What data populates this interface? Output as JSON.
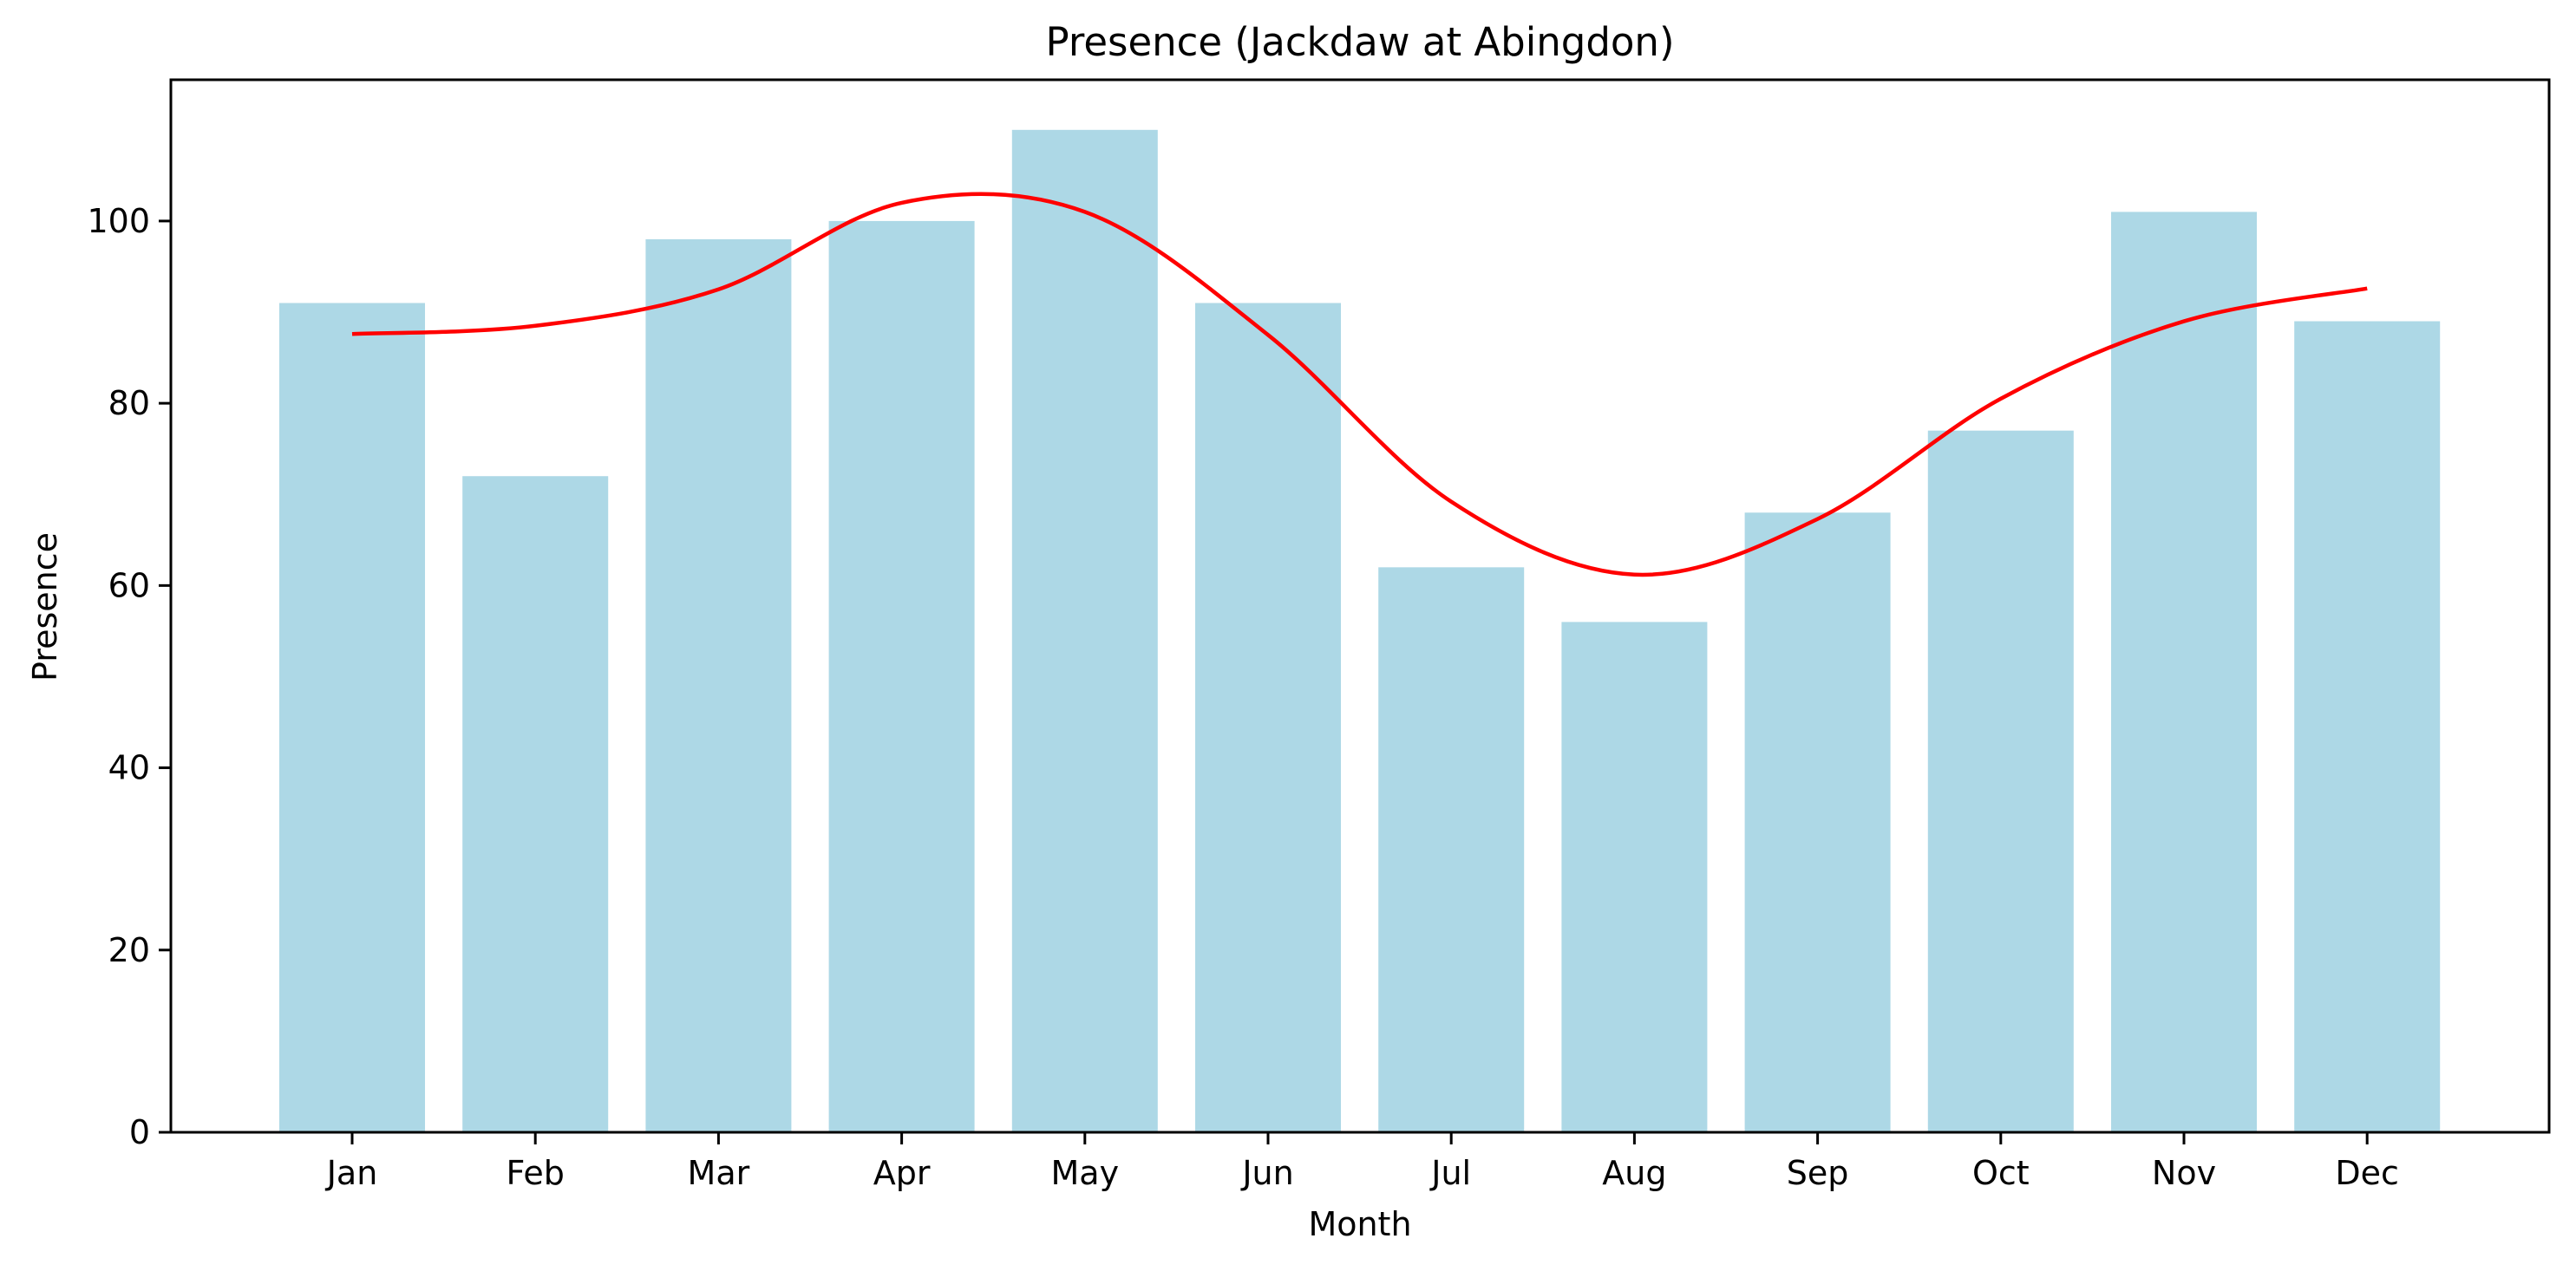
{
  "chart_data": {
    "type": "bar",
    "title": "Presence (Jackdaw at Abingdon)",
    "xlabel": "Month",
    "ylabel": "Presence",
    "categories": [
      "Jan",
      "Feb",
      "Mar",
      "Apr",
      "May",
      "Jun",
      "Jul",
      "Aug",
      "Sep",
      "Oct",
      "Nov",
      "Dec"
    ],
    "series": [
      {
        "type": "bar",
        "values": [
          91,
          72,
          98,
          100,
          110,
          91,
          62,
          56,
          68,
          77,
          101,
          89
        ],
        "color": "#add8e6"
      },
      {
        "type": "line",
        "values": [
          87.6,
          88.5,
          92.5,
          102.0,
          101.0,
          87.5,
          69.2,
          61.2,
          67.3,
          80.5,
          89.0,
          92.6
        ],
        "color": "#ff0000"
      }
    ],
    "ylim": [
      0,
      115.5
    ],
    "yticks": [
      0,
      20,
      40,
      60,
      80,
      100
    ],
    "grid": false,
    "legend": "none"
  }
}
